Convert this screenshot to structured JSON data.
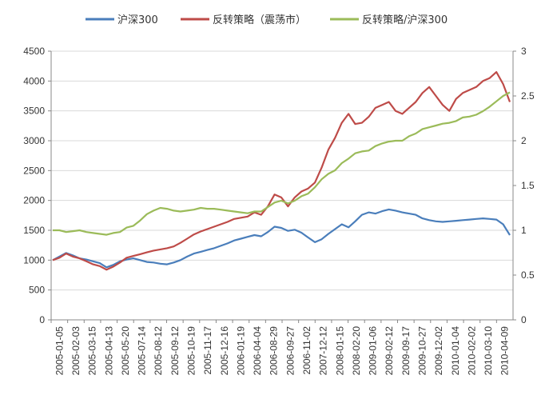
{
  "chart_data": {
    "type": "line",
    "title": "",
    "xlabel": "",
    "ylabel": "",
    "legend_position": "top",
    "grid": {
      "horizontal": true,
      "vertical": false
    },
    "y_left": {
      "min": 0,
      "max": 4500,
      "ticks": [
        0,
        500,
        1000,
        1500,
        2000,
        2500,
        3000,
        3500,
        4000,
        4500
      ]
    },
    "y_right": {
      "min": 0,
      "max": 3,
      "ticks": [
        "0",
        "0.5",
        "1",
        "1.5",
        "2",
        "2.5",
        "3"
      ]
    },
    "x_tick_labels": [
      "2005-01-05",
      "2005-02-03",
      "2005-03-15",
      "2005-04-13",
      "2005-05-20",
      "2005-07-14",
      "2005-08-12",
      "2005-09-12",
      "2005-10-19",
      "2005-11-17",
      "2005-12-16",
      "2006-01-19",
      "2006-04-04",
      "2006-08-29",
      "2006-09-27",
      "2006-11-02",
      "2007-12-12",
      "2008-01-15",
      "2008-02-20",
      "2009-01-06",
      "2009-02-12",
      "2009-09-17",
      "2009-10-27",
      "2009-12-02",
      "2010-01-04",
      "2010-02-02",
      "2010-03-10",
      "2010-04-09"
    ],
    "series": [
      {
        "name": "沪深300",
        "color": "#4a7ebb",
        "axis": "left",
        "values": [
          1000,
          1060,
          1120,
          1080,
          1030,
          1010,
          980,
          950,
          880,
          920,
          980,
          1010,
          1030,
          1000,
          970,
          960,
          940,
          930,
          960,
          1000,
          1060,
          1110,
          1140,
          1170,
          1200,
          1240,
          1280,
          1330,
          1360,
          1390,
          1420,
          1400,
          1470,
          1560,
          1540,
          1490,
          1510,
          1460,
          1380,
          1300,
          1350,
          1440,
          1520,
          1600,
          1550,
          1650,
          1760,
          1800,
          1780,
          1820,
          1850,
          1830,
          1800,
          1780,
          1760,
          1700,
          1670,
          1650,
          1640,
          1650,
          1660,
          1670,
          1680,
          1690,
          1700,
          1690,
          1680,
          1600,
          1420
        ]
      },
      {
        "name": "反转策略（震荡市）",
        "color": "#be4b48",
        "axis": "left",
        "values": [
          1000,
          1040,
          1110,
          1060,
          1030,
          980,
          930,
          900,
          840,
          890,
          960,
          1040,
          1070,
          1100,
          1130,
          1160,
          1180,
          1200,
          1230,
          1290,
          1360,
          1430,
          1480,
          1520,
          1560,
          1600,
          1640,
          1690,
          1710,
          1730,
          1800,
          1760,
          1900,
          2100,
          2050,
          1900,
          2050,
          2150,
          2200,
          2300,
          2550,
          2850,
          3050,
          3300,
          3450,
          3280,
          3300,
          3400,
          3550,
          3600,
          3650,
          3500,
          3450,
          3550,
          3650,
          3800,
          3900,
          3750,
          3600,
          3500,
          3700,
          3800,
          3850,
          3900,
          4000,
          4050,
          4150,
          3950,
          3650
        ]
      },
      {
        "name": "反转策略/沪深300",
        "color": "#9bbb59",
        "axis": "right",
        "values": [
          1.0,
          1.0,
          0.98,
          0.99,
          1.0,
          0.98,
          0.97,
          0.96,
          0.95,
          0.97,
          0.98,
          1.03,
          1.05,
          1.11,
          1.18,
          1.22,
          1.25,
          1.24,
          1.22,
          1.21,
          1.22,
          1.23,
          1.25,
          1.24,
          1.24,
          1.23,
          1.22,
          1.21,
          1.2,
          1.19,
          1.21,
          1.21,
          1.26,
          1.31,
          1.33,
          1.3,
          1.33,
          1.38,
          1.41,
          1.48,
          1.57,
          1.63,
          1.67,
          1.75,
          1.8,
          1.86,
          1.88,
          1.89,
          1.94,
          1.97,
          1.99,
          2.0,
          2.0,
          2.05,
          2.08,
          2.13,
          2.15,
          2.17,
          2.19,
          2.2,
          2.22,
          2.26,
          2.27,
          2.29,
          2.33,
          2.38,
          2.44,
          2.5,
          2.54
        ]
      }
    ]
  }
}
